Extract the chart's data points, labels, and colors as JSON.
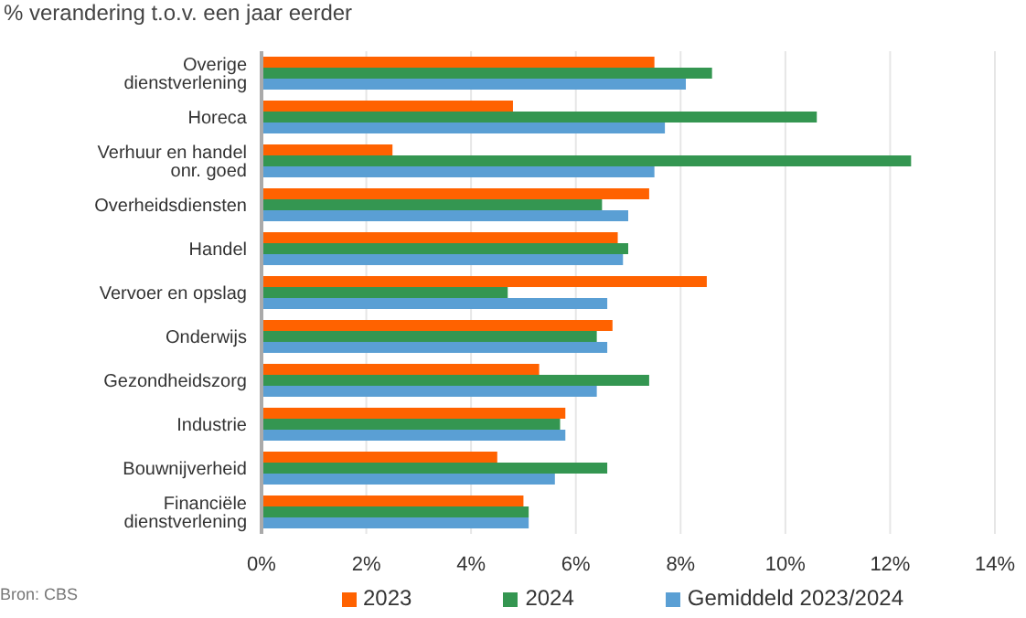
{
  "chart_data": {
    "type": "bar",
    "orientation": "horizontal",
    "title": "% verandering t.o.v. een jaar eerder",
    "categories": [
      "Overige dienstverlening",
      "Horeca",
      "Verhuur en handel onr. goed",
      "Overheidsdiensten",
      "Handel",
      "Vervoer en opslag",
      "Onderwijs",
      "Gezondheidszorg",
      "Industrie",
      "Bouwnijverheid",
      "Financiële dienstverlening"
    ],
    "series": [
      {
        "name": "2023",
        "color": "#ff6200",
        "values": [
          7.5,
          4.8,
          2.5,
          7.4,
          6.8,
          8.5,
          6.7,
          5.3,
          5.8,
          4.5,
          5.0
        ]
      },
      {
        "name": "2024",
        "color": "#349651",
        "values": [
          8.6,
          10.6,
          12.4,
          6.5,
          7.0,
          4.7,
          6.4,
          7.4,
          5.7,
          6.6,
          5.1
        ]
      },
      {
        "name": "Gemiddeld 2023/2024",
        "color": "#5a9fd4",
        "values": [
          8.1,
          7.7,
          7.5,
          7.0,
          6.9,
          6.6,
          6.6,
          6.4,
          5.8,
          5.6,
          5.1
        ]
      }
    ],
    "xlim": [
      0,
      14
    ],
    "xticks": [
      {
        "value": 0,
        "label": "0%"
      },
      {
        "value": 2,
        "label": "2%"
      },
      {
        "value": 4,
        "label": "4%"
      },
      {
        "value": 6,
        "label": "6%"
      },
      {
        "value": 8,
        "label": "8%"
      },
      {
        "value": 10,
        "label": "10%"
      },
      {
        "value": 12,
        "label": "12%"
      },
      {
        "value": 14,
        "label": "14%"
      }
    ],
    "grid": "x",
    "legend": "bottom",
    "annotations": [
      "Bron: CBS"
    ]
  }
}
